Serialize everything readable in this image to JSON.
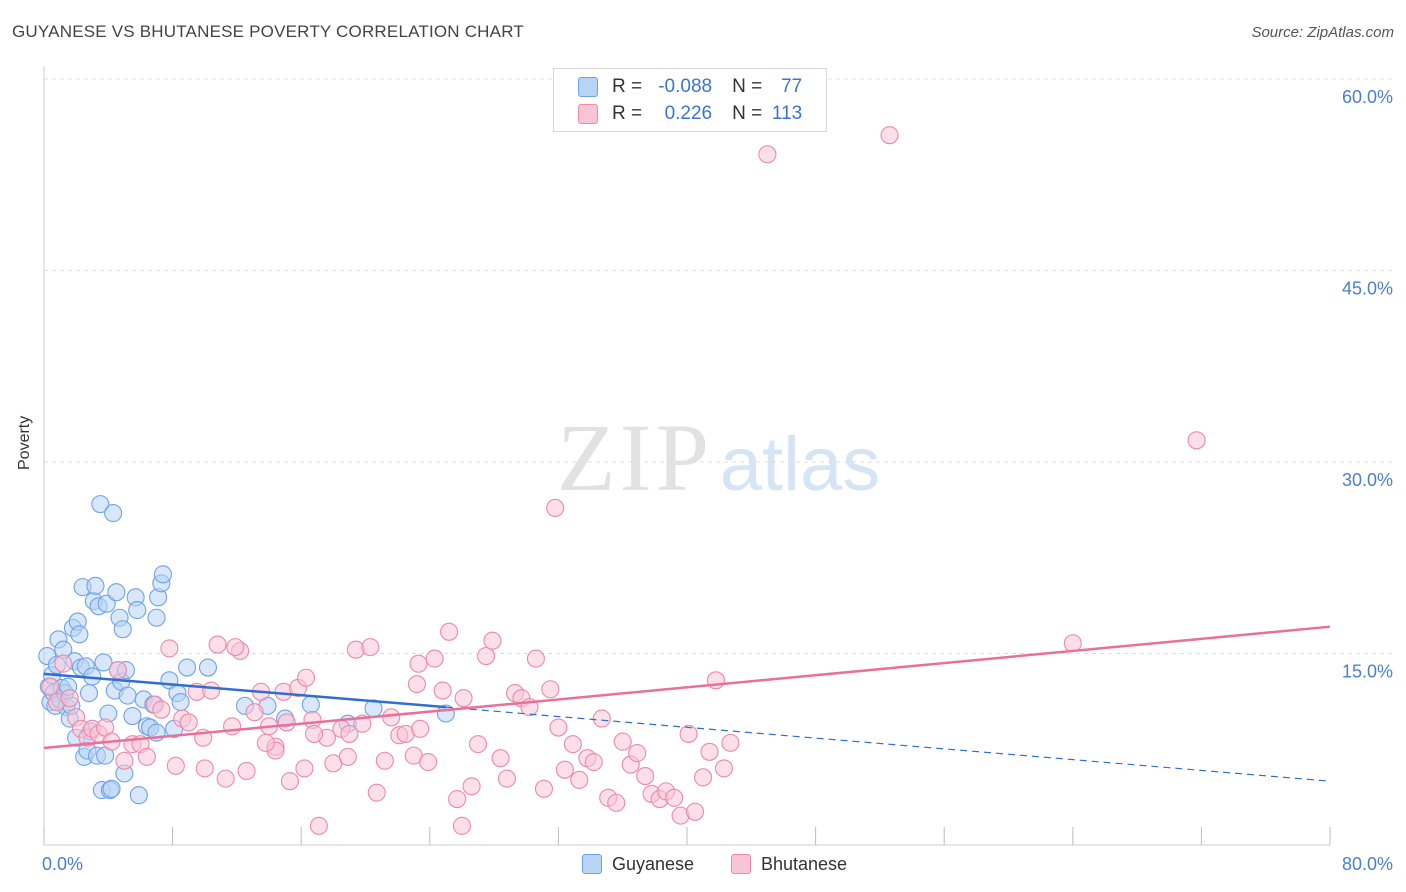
{
  "title": "GUYANESE VS BHUTANESE POVERTY CORRELATION CHART",
  "source": "Source: ZipAtlas.com",
  "watermark": {
    "zip": "ZIP",
    "atlas": "atlas"
  },
  "legend": {
    "r_label": "R =",
    "n_label": "N =",
    "rows": [
      {
        "name": "Guyanese",
        "r": "-0.088",
        "n": "77",
        "fill": "#b8d4f4",
        "stroke": "#6fa3e6"
      },
      {
        "name": "Bhutanese",
        "r": "0.226",
        "n": "113",
        "fill": "#f9c4d5",
        "stroke": "#eb8aac"
      }
    ]
  },
  "chart_data": {
    "type": "scatter",
    "title": "GUYANESE VS BHUTANESE POVERTY CORRELATION CHART",
    "xlabel": "",
    "ylabel": "Poverty",
    "xlim": [
      0,
      80
    ],
    "ylim": [
      0,
      60
    ],
    "x_tick_labels": [
      "0.0%",
      "80.0%"
    ],
    "y_ticks": [
      15,
      30,
      45,
      60
    ],
    "y_tick_labels": [
      "15.0%",
      "30.0%",
      "45.0%",
      "60.0%"
    ],
    "grid": true,
    "series": [
      {
        "name": "Guyanese",
        "color": "#6fa3e6",
        "fill": "#b8d4f4",
        "trend": {
          "x": [
            0,
            25
          ],
          "y": [
            13.4,
            10.8
          ],
          "dashed_to": [
            80,
            5.0
          ],
          "color": "#2f6fd0"
        },
        "points": [
          [
            0.2,
            14.8
          ],
          [
            0.3,
            12.4
          ],
          [
            0.4,
            11.2
          ],
          [
            0.5,
            13.3
          ],
          [
            0.6,
            11.9
          ],
          [
            0.7,
            10.9
          ],
          [
            0.8,
            14.1
          ],
          [
            0.9,
            16.1
          ],
          [
            1.0,
            11.4
          ],
          [
            1.1,
            12.3
          ],
          [
            1.2,
            15.3
          ],
          [
            1.3,
            11.9
          ],
          [
            1.4,
            10.8
          ],
          [
            1.5,
            12.4
          ],
          [
            1.6,
            9.9
          ],
          [
            1.7,
            10.9
          ],
          [
            1.8,
            17.0
          ],
          [
            1.9,
            14.4
          ],
          [
            2.0,
            8.4
          ],
          [
            2.1,
            17.5
          ],
          [
            2.2,
            16.5
          ],
          [
            2.3,
            13.9
          ],
          [
            2.4,
            20.2
          ],
          [
            2.5,
            6.9
          ],
          [
            2.6,
            14.0
          ],
          [
            2.7,
            7.4
          ],
          [
            2.8,
            11.9
          ],
          [
            2.9,
            8.9
          ],
          [
            3.0,
            13.2
          ],
          [
            3.1,
            19.1
          ],
          [
            3.2,
            20.3
          ],
          [
            3.3,
            7.0
          ],
          [
            3.4,
            18.7
          ],
          [
            3.5,
            26.7
          ],
          [
            3.6,
            4.3
          ],
          [
            3.7,
            14.3
          ],
          [
            3.8,
            7.0
          ],
          [
            3.9,
            18.9
          ],
          [
            4.0,
            10.3
          ],
          [
            4.1,
            4.3
          ],
          [
            4.2,
            4.4
          ],
          [
            4.3,
            26.0
          ],
          [
            4.4,
            12.1
          ],
          [
            4.5,
            19.8
          ],
          [
            4.6,
            13.7
          ],
          [
            4.7,
            17.8
          ],
          [
            4.8,
            12.8
          ],
          [
            4.9,
            16.9
          ],
          [
            5.0,
            5.6
          ],
          [
            5.1,
            13.7
          ],
          [
            5.2,
            11.7
          ],
          [
            5.5,
            10.1
          ],
          [
            5.7,
            19.4
          ],
          [
            5.8,
            18.4
          ],
          [
            5.9,
            3.9
          ],
          [
            6.2,
            11.4
          ],
          [
            6.4,
            9.3
          ],
          [
            6.6,
            9.2
          ],
          [
            6.8,
            11.0
          ],
          [
            7.0,
            17.8
          ],
          [
            7.1,
            19.4
          ],
          [
            7.3,
            20.5
          ],
          [
            7.4,
            21.2
          ],
          [
            7.8,
            12.9
          ],
          [
            8.3,
            11.9
          ],
          [
            8.9,
            13.9
          ],
          [
            8.1,
            9.1
          ],
          [
            7.0,
            8.8
          ],
          [
            8.5,
            11.2
          ],
          [
            10.2,
            13.9
          ],
          [
            12.5,
            10.9
          ],
          [
            13.9,
            10.9
          ],
          [
            15.0,
            9.9
          ],
          [
            16.6,
            11.0
          ],
          [
            18.9,
            9.5
          ],
          [
            20.5,
            10.7
          ],
          [
            25.0,
            10.3
          ]
        ]
      },
      {
        "name": "Bhutanese",
        "color": "#eb8aac",
        "fill": "#f9c4d5",
        "trend": {
          "x": [
            0,
            80
          ],
          "y": [
            7.6,
            17.1
          ],
          "color": "#e8709a"
        },
        "points": [
          [
            0.4,
            12.4
          ],
          [
            0.8,
            11.2
          ],
          [
            1.2,
            14.2
          ],
          [
            1.6,
            11.5
          ],
          [
            2.0,
            10.0
          ],
          [
            2.3,
            9.1
          ],
          [
            2.7,
            8.4
          ],
          [
            3.0,
            9.1
          ],
          [
            3.4,
            8.7
          ],
          [
            3.8,
            9.2
          ],
          [
            4.2,
            8.1
          ],
          [
            4.6,
            13.7
          ],
          [
            5.0,
            6.6
          ],
          [
            5.5,
            7.9
          ],
          [
            6.0,
            7.9
          ],
          [
            6.4,
            6.9
          ],
          [
            6.9,
            11.0
          ],
          [
            7.3,
            10.6
          ],
          [
            7.8,
            15.4
          ],
          [
            8.2,
            6.2
          ],
          [
            8.6,
            9.9
          ],
          [
            9.0,
            9.6
          ],
          [
            9.5,
            12.0
          ],
          [
            9.9,
            8.4
          ],
          [
            10.4,
            12.1
          ],
          [
            10.8,
            15.7
          ],
          [
            11.3,
            5.2
          ],
          [
            11.7,
            9.3
          ],
          [
            12.2,
            15.2
          ],
          [
            12.6,
            5.8
          ],
          [
            13.1,
            10.4
          ],
          [
            13.5,
            12.0
          ],
          [
            14.0,
            9.3
          ],
          [
            14.4,
            7.7
          ],
          [
            14.9,
            12.0
          ],
          [
            15.3,
            5.0
          ],
          [
            15.8,
            12.3
          ],
          [
            16.2,
            6.0
          ],
          [
            16.7,
            9.8
          ],
          [
            17.1,
            1.5
          ],
          [
            17.6,
            8.4
          ],
          [
            18.0,
            6.4
          ],
          [
            18.5,
            9.1
          ],
          [
            18.9,
            6.9
          ],
          [
            19.4,
            15.3
          ],
          [
            19.8,
            9.5
          ],
          [
            20.3,
            15.5
          ],
          [
            20.7,
            4.1
          ],
          [
            21.2,
            6.6
          ],
          [
            21.6,
            10.0
          ],
          [
            22.1,
            8.6
          ],
          [
            22.5,
            8.7
          ],
          [
            23.0,
            7.0
          ],
          [
            23.4,
            9.1
          ],
          [
            23.9,
            6.5
          ],
          [
            24.3,
            14.6
          ],
          [
            24.8,
            12.1
          ],
          [
            25.2,
            16.7
          ],
          [
            25.7,
            3.6
          ],
          [
            26.1,
            11.5
          ],
          [
            26.6,
            4.6
          ],
          [
            27.0,
            7.9
          ],
          [
            27.5,
            14.8
          ],
          [
            27.9,
            16.0
          ],
          [
            28.4,
            6.8
          ],
          [
            28.8,
            5.2
          ],
          [
            29.3,
            11.9
          ],
          [
            29.7,
            11.5
          ],
          [
            30.2,
            10.8
          ],
          [
            30.6,
            14.6
          ],
          [
            31.1,
            4.4
          ],
          [
            31.5,
            12.2
          ],
          [
            32.0,
            9.2
          ],
          [
            32.4,
            5.9
          ],
          [
            32.9,
            7.9
          ],
          [
            33.3,
            5.1
          ],
          [
            33.8,
            6.8
          ],
          [
            34.2,
            6.5
          ],
          [
            34.7,
            9.9
          ],
          [
            35.1,
            3.7
          ],
          [
            35.6,
            3.3
          ],
          [
            36.0,
            8.1
          ],
          [
            36.5,
            6.3
          ],
          [
            36.9,
            7.2
          ],
          [
            37.4,
            5.4
          ],
          [
            37.8,
            4.0
          ],
          [
            38.3,
            3.6
          ],
          [
            38.7,
            4.2
          ],
          [
            39.2,
            3.7
          ],
          [
            39.6,
            2.3
          ],
          [
            40.1,
            8.7
          ],
          [
            40.5,
            2.6
          ],
          [
            41.0,
            5.3
          ],
          [
            41.4,
            7.3
          ],
          [
            41.8,
            12.9
          ],
          [
            42.3,
            6.0
          ],
          [
            42.7,
            8.0
          ],
          [
            45.0,
            54.1
          ],
          [
            52.6,
            55.6
          ],
          [
            31.8,
            26.4
          ],
          [
            71.7,
            31.7
          ],
          [
            64.0,
            15.8
          ],
          [
            11.9,
            15.5
          ],
          [
            14.4,
            7.4
          ],
          [
            16.8,
            8.7
          ],
          [
            19.0,
            8.7
          ],
          [
            23.2,
            12.6
          ],
          [
            26.0,
            1.5
          ],
          [
            23.3,
            14.2
          ],
          [
            16.3,
            13.1
          ],
          [
            13.8,
            8.0
          ],
          [
            15.1,
            9.6
          ],
          [
            10.0,
            6.0
          ]
        ]
      }
    ]
  }
}
